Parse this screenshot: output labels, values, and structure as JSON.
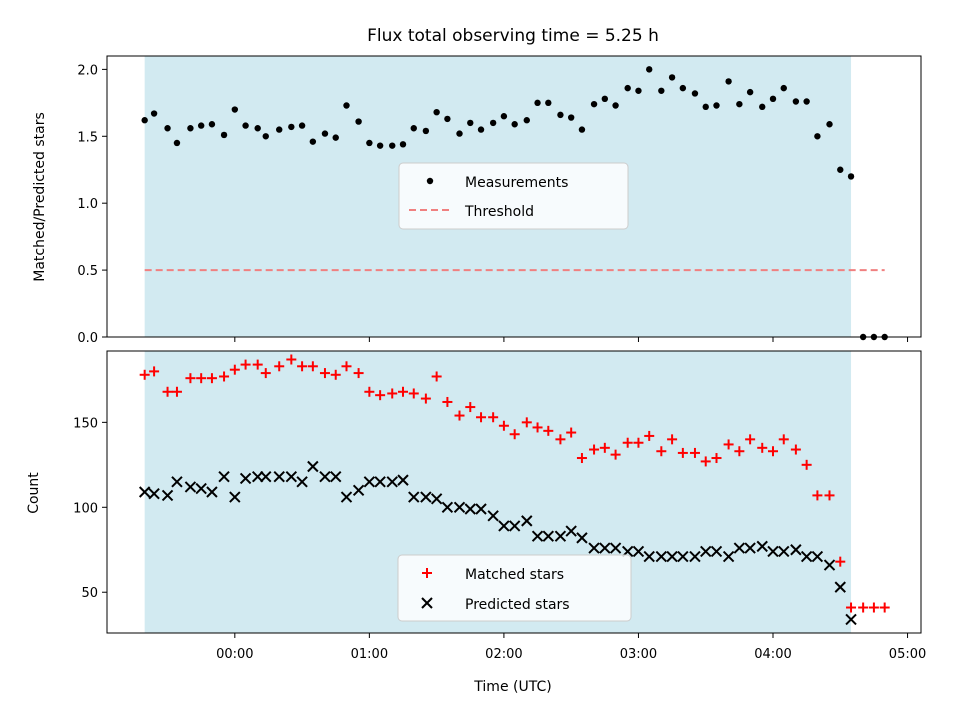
{
  "chart_data": {
    "type": "scatter",
    "title": "Flux total observing time = 5.25 h",
    "xlabel": "Time (UTC)",
    "x_ticks": [
      "00:00",
      "01:00",
      "02:00",
      "03:00",
      "04:00",
      "05:00"
    ],
    "x_tick_hours": [
      0,
      1,
      2,
      3,
      4,
      5
    ],
    "x_range_hours": [
      -0.95,
      5.1
    ],
    "shaded_span_hours": [
      -0.67,
      4.58
    ],
    "shaded_color": "#add8e6",
    "top": {
      "ylabel": "Matched/Predicted stars",
      "ylim": [
        0,
        2.1
      ],
      "y_ticks": [
        "0.0",
        "0.5",
        "1.0",
        "1.5",
        "2.0"
      ],
      "y_tick_values": [
        0,
        0.5,
        1.0,
        1.5,
        2.0
      ],
      "threshold": {
        "name": "Threshold",
        "value": 0.5,
        "x_start": -0.67,
        "x_end": 4.83,
        "color": "#f08080"
      },
      "measurements": {
        "name": "Measurements",
        "color": "#000000",
        "x": [
          -0.67,
          -0.6,
          -0.5,
          -0.43,
          -0.33,
          -0.25,
          -0.17,
          -0.08,
          0.0,
          0.08,
          0.17,
          0.23,
          0.33,
          0.42,
          0.5,
          0.58,
          0.67,
          0.75,
          0.83,
          0.92,
          1.0,
          1.08,
          1.17,
          1.25,
          1.33,
          1.42,
          1.5,
          1.58,
          1.67,
          1.75,
          1.83,
          1.92,
          2.0,
          2.08,
          2.17,
          2.25,
          2.33,
          2.42,
          2.5,
          2.58,
          2.67,
          2.75,
          2.83,
          2.92,
          3.0,
          3.08,
          3.17,
          3.25,
          3.33,
          3.42,
          3.5,
          3.58,
          3.67,
          3.75,
          3.83,
          3.92,
          4.0,
          4.08,
          4.17,
          4.25,
          4.33,
          4.42,
          4.5,
          4.58,
          4.67,
          4.75,
          4.83
        ],
        "y": [
          1.62,
          1.67,
          1.56,
          1.45,
          1.56,
          1.58,
          1.59,
          1.51,
          1.7,
          1.58,
          1.56,
          1.5,
          1.55,
          1.57,
          1.58,
          1.46,
          1.52,
          1.49,
          1.73,
          1.61,
          1.45,
          1.43,
          1.43,
          1.44,
          1.56,
          1.54,
          1.68,
          1.63,
          1.52,
          1.6,
          1.55,
          1.6,
          1.65,
          1.59,
          1.62,
          1.75,
          1.75,
          1.66,
          1.64,
          1.55,
          1.74,
          1.78,
          1.73,
          1.86,
          1.84,
          2.0,
          1.84,
          1.94,
          1.86,
          1.82,
          1.72,
          1.73,
          1.91,
          1.74,
          1.83,
          1.72,
          1.78,
          1.86,
          1.76,
          1.76,
          1.5,
          1.59,
          1.25,
          1.2,
          0.0,
          0.0,
          0.0
        ]
      }
    },
    "bottom": {
      "ylabel": "Count",
      "ylim": [
        26,
        192
      ],
      "y_ticks": [
        "50",
        "100",
        "150"
      ],
      "y_tick_values": [
        50,
        100,
        150
      ],
      "series": [
        {
          "name": "Matched stars",
          "color": "#ff0000",
          "marker": "plus",
          "x": [
            -0.67,
            -0.6,
            -0.5,
            -0.43,
            -0.33,
            -0.25,
            -0.17,
            -0.08,
            0.0,
            0.08,
            0.17,
            0.23,
            0.33,
            0.42,
            0.5,
            0.58,
            0.67,
            0.75,
            0.83,
            0.92,
            1.0,
            1.08,
            1.17,
            1.25,
            1.33,
            1.42,
            1.5,
            1.58,
            1.67,
            1.75,
            1.83,
            1.92,
            2.0,
            2.08,
            2.17,
            2.25,
            2.33,
            2.42,
            2.5,
            2.58,
            2.67,
            2.75,
            2.83,
            2.92,
            3.0,
            3.08,
            3.17,
            3.25,
            3.33,
            3.42,
            3.5,
            3.58,
            3.67,
            3.75,
            3.83,
            3.92,
            4.0,
            4.08,
            4.17,
            4.25,
            4.33,
            4.42,
            4.5,
            4.58,
            4.67,
            4.75,
            4.83
          ],
          "y": [
            178,
            180,
            168,
            168,
            176,
            176,
            176,
            177,
            181,
            184,
            184,
            179,
            183,
            187,
            183,
            183,
            179,
            178,
            183,
            179,
            168,
            166,
            167,
            168,
            167,
            164,
            177,
            162,
            154,
            159,
            153,
            153,
            148,
            143,
            150,
            147,
            145,
            140,
            144,
            129,
            134,
            135,
            131,
            138,
            138,
            142,
            133,
            140,
            132,
            132,
            127,
            129,
            137,
            133,
            140,
            135,
            133,
            140,
            134,
            125,
            107,
            107,
            68,
            41,
            41,
            41,
            41
          ]
        },
        {
          "name": "Predicted stars",
          "color": "#000000",
          "marker": "x",
          "x": [
            -0.67,
            -0.6,
            -0.5,
            -0.43,
            -0.33,
            -0.25,
            -0.17,
            -0.08,
            0.0,
            0.08,
            0.17,
            0.23,
            0.33,
            0.42,
            0.5,
            0.58,
            0.67,
            0.75,
            0.83,
            0.92,
            1.0,
            1.08,
            1.17,
            1.25,
            1.33,
            1.42,
            1.5,
            1.58,
            1.67,
            1.75,
            1.83,
            1.92,
            2.0,
            2.08,
            2.17,
            2.25,
            2.33,
            2.42,
            2.5,
            2.58,
            2.67,
            2.75,
            2.83,
            2.92,
            3.0,
            3.08,
            3.17,
            3.25,
            3.33,
            3.42,
            3.5,
            3.58,
            3.67,
            3.75,
            3.83,
            3.92,
            4.0,
            4.08,
            4.17,
            4.25,
            4.33,
            4.42,
            4.5,
            4.58
          ],
          "y": [
            109,
            108,
            107,
            115,
            112,
            111,
            109,
            118,
            106,
            117,
            118,
            118,
            118,
            118,
            115,
            124,
            118,
            118,
            106,
            110,
            115,
            115,
            115,
            116,
            106,
            106,
            105,
            100,
            100,
            99,
            99,
            95,
            89,
            89,
            92,
            83,
            83,
            83,
            86,
            82,
            76,
            76,
            76,
            74,
            74,
            71,
            71,
            71,
            71,
            71,
            74,
            74,
            71,
            76,
            76,
            77,
            74,
            74,
            75,
            71,
            71,
            66,
            53,
            34
          ]
        }
      ]
    },
    "legend_top": {
      "placement": "center"
    },
    "legend_bottom": {
      "placement": "lower center"
    }
  }
}
